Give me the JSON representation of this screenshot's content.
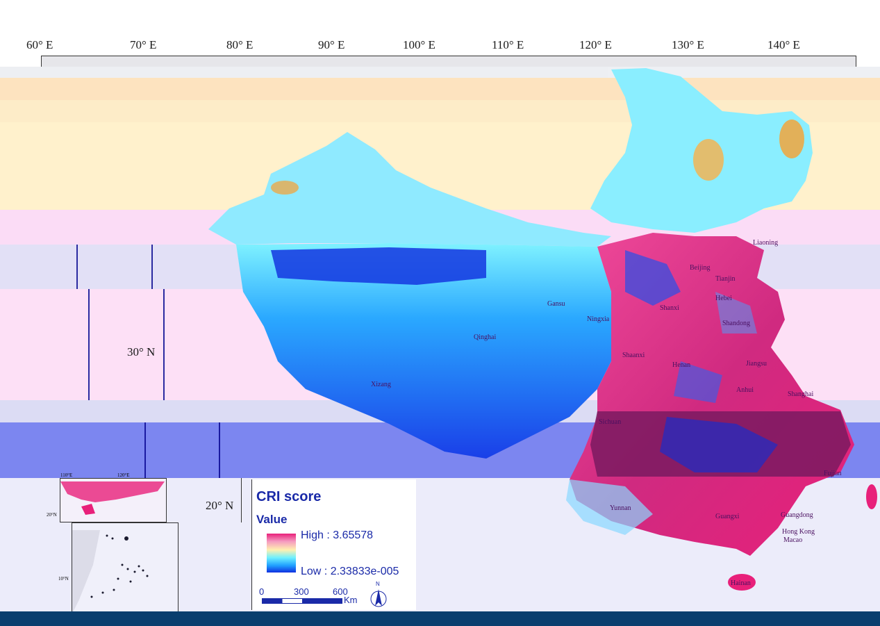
{
  "map": {
    "longitude_labels": [
      "60° E",
      "70° E",
      "80° E",
      "90° E",
      "100° E",
      "110° E",
      "120° E",
      "130° E",
      "140° E"
    ],
    "latitude_labels": [
      "30° N",
      "20° N"
    ],
    "provinces": [
      "Liaoning",
      "Beijing",
      "Tianjin",
      "Hebei",
      "Shanxi",
      "Ningxia",
      "Gansu",
      "Shandong",
      "Qinghai",
      "Shaanxi",
      "Henan",
      "Jiangsu",
      "Xizang",
      "Anhui",
      "Shanghai",
      "Sichuan",
      "Fujian",
      "Yunnan",
      "Guangxi",
      "Guangdong",
      "Hong Kong",
      "Macao",
      "Hainan"
    ],
    "inset": {
      "lon_labels": [
        "110°E",
        "120°E"
      ],
      "lat_labels": [
        "20°N",
        "10°N"
      ]
    }
  },
  "legend": {
    "title": "CRI score",
    "subtitle": "Value",
    "high": "High : 3.65578",
    "low": "Low : 2.33833e-005",
    "scale_labels": [
      "0",
      "300",
      "600"
    ],
    "scale_unit": "Km",
    "north": "N"
  },
  "colors": {
    "high": "#e8207a",
    "mid": "#fff0b0",
    "low": "#1030e0",
    "legend_text": "#1a2aa8",
    "bottom_bar": "#0a3e6e"
  }
}
